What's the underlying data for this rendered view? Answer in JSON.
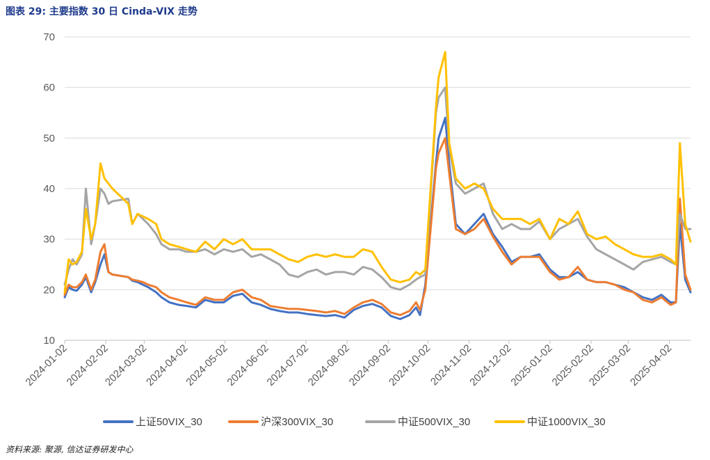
{
  "figure": {
    "title": "图表 29:  主要指数 30 日 Cinda-VIX 走势",
    "source": "资料来源:  聚源,  信达证券研发中心"
  },
  "chart_data": {
    "type": "line",
    "ylim": [
      10,
      70
    ],
    "yticks": [
      10,
      20,
      30,
      40,
      50,
      60,
      70
    ],
    "xlim": [
      "2024-01-02",
      "2025-04-18"
    ],
    "xticks": [
      "2024-01-02",
      "2024-02-02",
      "2024-03-02",
      "2024-04-02",
      "2024-05-02",
      "2024-06-02",
      "2024-07-02",
      "2024-08-02",
      "2024-09-02",
      "2024-10-02",
      "2024-11-02",
      "2024-12-02",
      "2025-01-02",
      "2025-02-02",
      "2025-03-02",
      "2025-04-02"
    ],
    "grid": true,
    "legend_position": "bottom",
    "x": [
      "2024-01-02",
      "2024-01-05",
      "2024-01-08",
      "2024-01-11",
      "2024-01-15",
      "2024-01-18",
      "2024-01-22",
      "2024-01-25",
      "2024-01-29",
      "2024-02-01",
      "2024-02-04",
      "2024-02-07",
      "2024-02-19",
      "2024-02-22",
      "2024-02-26",
      "2024-03-01",
      "2024-03-05",
      "2024-03-11",
      "2024-03-15",
      "2024-03-21",
      "2024-03-28",
      "2024-04-03",
      "2024-04-10",
      "2024-04-17",
      "2024-04-24",
      "2024-05-01",
      "2024-05-08",
      "2024-05-15",
      "2024-05-22",
      "2024-05-29",
      "2024-06-05",
      "2024-06-12",
      "2024-06-19",
      "2024-06-26",
      "2024-07-03",
      "2024-07-10",
      "2024-07-17",
      "2024-07-24",
      "2024-07-31",
      "2024-08-07",
      "2024-08-14",
      "2024-08-21",
      "2024-08-28",
      "2024-09-04",
      "2024-09-11",
      "2024-09-18",
      "2024-09-23",
      "2024-09-26",
      "2024-09-30",
      "2024-10-08",
      "2024-10-10",
      "2024-10-15",
      "2024-10-18",
      "2024-10-23",
      "2024-10-30",
      "2024-11-06",
      "2024-11-13",
      "2024-11-20",
      "2024-11-27",
      "2024-12-04",
      "2024-12-11",
      "2024-12-18",
      "2024-12-25",
      "2025-01-02",
      "2025-01-09",
      "2025-01-16",
      "2025-01-23",
      "2025-01-30",
      "2025-02-06",
      "2025-02-13",
      "2025-02-20",
      "2025-02-27",
      "2025-03-06",
      "2025-03-13",
      "2025-03-20",
      "2025-03-27",
      "2025-04-03",
      "2025-04-07",
      "2025-04-10",
      "2025-04-14",
      "2025-04-18"
    ],
    "series": [
      {
        "name": "上证50VIX_30",
        "color": "#4472C4",
        "values": [
          18.5,
          20.5,
          20,
          19.8,
          21,
          22.5,
          19.5,
          21.5,
          25,
          27,
          23.5,
          23,
          22.5,
          21.8,
          21.5,
          21,
          20.5,
          19.5,
          18.5,
          17.5,
          17,
          16.8,
          16.5,
          18,
          17.5,
          17.5,
          18.8,
          19.2,
          17.5,
          17,
          16.2,
          15.8,
          15.5,
          15.5,
          15.2,
          15,
          14.8,
          15,
          14.5,
          16,
          16.8,
          17.2,
          16.5,
          14.8,
          14.2,
          15,
          16.5,
          15,
          21,
          45,
          50,
          54,
          45,
          33,
          31,
          33,
          35,
          31,
          28.5,
          25.5,
          26.5,
          26.5,
          27,
          24,
          22.5,
          22.5,
          23.5,
          22,
          21.5,
          21.5,
          21,
          20.5,
          19.5,
          18.5,
          18,
          19,
          17.5,
          17.5,
          33,
          22,
          19.5
        ]
      },
      {
        "name": "沪深300VIX_30",
        "color": "#ED7D31",
        "values": [
          19,
          21,
          20.5,
          20.5,
          21.5,
          23,
          20,
          22,
          27.5,
          29,
          23.5,
          23,
          22.5,
          22,
          21.8,
          21.5,
          21,
          20.5,
          19.5,
          18.5,
          18,
          17.5,
          17,
          18.5,
          18,
          18,
          19.5,
          20,
          18.5,
          18,
          16.8,
          16.5,
          16.2,
          16.2,
          16,
          15.8,
          15.5,
          15.8,
          15.2,
          16.5,
          17.5,
          18,
          17.2,
          15.5,
          15,
          15.8,
          17.5,
          16,
          20,
          44,
          47,
          50,
          43,
          32,
          31,
          32,
          34,
          30.5,
          27.5,
          25,
          26.5,
          26.5,
          26.5,
          23.5,
          22,
          22.5,
          24.5,
          22,
          21.5,
          21.5,
          21,
          20,
          19.5,
          18,
          17.5,
          18.5,
          17,
          17.5,
          38,
          23,
          20
        ]
      },
      {
        "name": "中证500VIX_30",
        "color": "#A5A5A5",
        "values": [
          21,
          24,
          26,
          25,
          27,
          40,
          29,
          33,
          40,
          39,
          37,
          37.5,
          38,
          33,
          35,
          34,
          33,
          31,
          29,
          28,
          28,
          27.5,
          27.5,
          28,
          27,
          28,
          27.5,
          28,
          26.5,
          27,
          26,
          25,
          23,
          22.5,
          23.5,
          24,
          23,
          23.5,
          23.5,
          23,
          24.5,
          24,
          22.5,
          20.5,
          20,
          21,
          22,
          22.5,
          23,
          55,
          58,
          60,
          48,
          41,
          39,
          40,
          41,
          35,
          32,
          33,
          32,
          32,
          33.5,
          30,
          32,
          33,
          34,
          30.5,
          28,
          27,
          26,
          25,
          24,
          25.5,
          26,
          26.5,
          25.5,
          25,
          35,
          32,
          32
        ]
      },
      {
        "name": "中证1000VIX_30",
        "color": "#FFC000",
        "values": [
          19.5,
          26,
          25,
          25.5,
          27.5,
          36,
          30,
          33,
          45,
          42,
          41,
          40,
          37,
          33,
          35,
          34.5,
          34,
          33,
          30,
          29,
          28.5,
          28,
          27.5,
          29.5,
          28,
          30,
          29,
          30,
          28,
          28,
          28,
          27,
          26,
          25.5,
          26.5,
          27,
          26.5,
          27,
          26.5,
          26.5,
          28,
          27.5,
          24.5,
          22,
          21.5,
          22,
          23.5,
          23,
          24,
          56,
          62,
          67,
          49,
          42,
          40,
          41,
          40,
          36,
          34,
          34,
          34,
          33,
          34,
          30,
          34,
          33,
          35.5,
          31,
          30,
          30.5,
          29,
          28,
          27,
          26.5,
          26.5,
          27,
          26,
          25,
          49,
          33,
          29.5
        ]
      }
    ]
  }
}
